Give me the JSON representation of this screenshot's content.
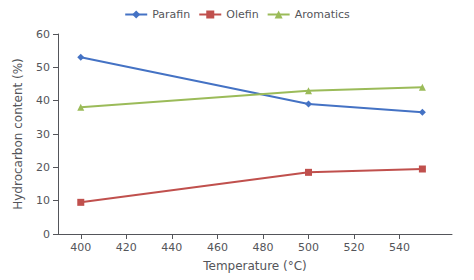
{
  "chart_data": {
    "type": "line",
    "xlabel": "Temperature (°C)",
    "ylabel": "Hydrocarbon content (%)",
    "x": [
      400,
      500,
      550
    ],
    "series": [
      {
        "name": "Parafin",
        "color": "#4472C4",
        "marker": "diamond",
        "values": [
          53,
          39,
          36.5
        ]
      },
      {
        "name": "Olefin",
        "color": "#C0504D",
        "marker": "square",
        "values": [
          9.5,
          18.5,
          19.5
        ]
      },
      {
        "name": "Aromatics",
        "color": "#9BBB59",
        "marker": "triangle",
        "values": [
          38,
          43,
          44
        ]
      }
    ],
    "xlim": [
      390,
      563
    ],
    "ylim": [
      0,
      60
    ],
    "xticks": [
      400,
      420,
      440,
      460,
      480,
      500,
      520,
      540
    ],
    "yticks": [
      0,
      10,
      20,
      30,
      40,
      50,
      60
    ],
    "grid": false,
    "legend": "top"
  }
}
